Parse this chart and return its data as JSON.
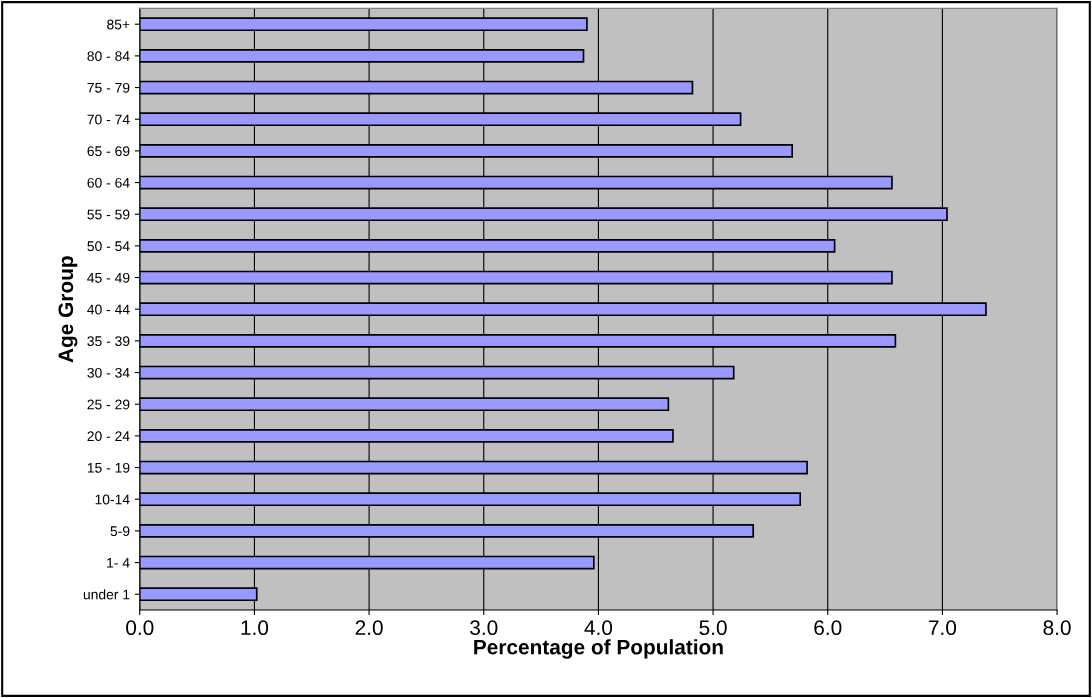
{
  "chart_data": {
    "type": "bar",
    "orientation": "horizontal",
    "xlabel": "Percentage of Population",
    "ylabel": "Age Group",
    "categories": [
      "85+",
      "80 - 84",
      "75 - 79",
      "70 - 74",
      "65 - 69",
      "60 - 64",
      "55 - 59",
      "50 - 54",
      "45 - 49",
      "40 - 44",
      "35 - 39",
      "30 - 34",
      "25 - 29",
      "20 - 24",
      "15 - 19",
      "10-14",
      "5-9",
      "1- 4",
      "under 1"
    ],
    "values": [
      3.9,
      3.87,
      4.82,
      5.24,
      5.69,
      6.56,
      7.04,
      6.06,
      6.56,
      7.38,
      6.59,
      5.18,
      4.61,
      4.65,
      5.82,
      5.76,
      5.35,
      3.96,
      1.02
    ],
    "color": "#9999ff",
    "xlim": [
      0,
      8
    ],
    "xticks": [
      {
        "value": 0,
        "label": "0.0"
      },
      {
        "value": 1,
        "label": "1.0"
      },
      {
        "value": 2,
        "label": "2.0"
      },
      {
        "value": 3,
        "label": "3.0"
      },
      {
        "value": 4,
        "label": "4.0"
      },
      {
        "value": 5,
        "label": "5.0"
      },
      {
        "value": 6,
        "label": "6.0"
      },
      {
        "value": 7,
        "label": "7.0"
      },
      {
        "value": 8,
        "label": "8.0"
      }
    ],
    "grid": "x"
  }
}
